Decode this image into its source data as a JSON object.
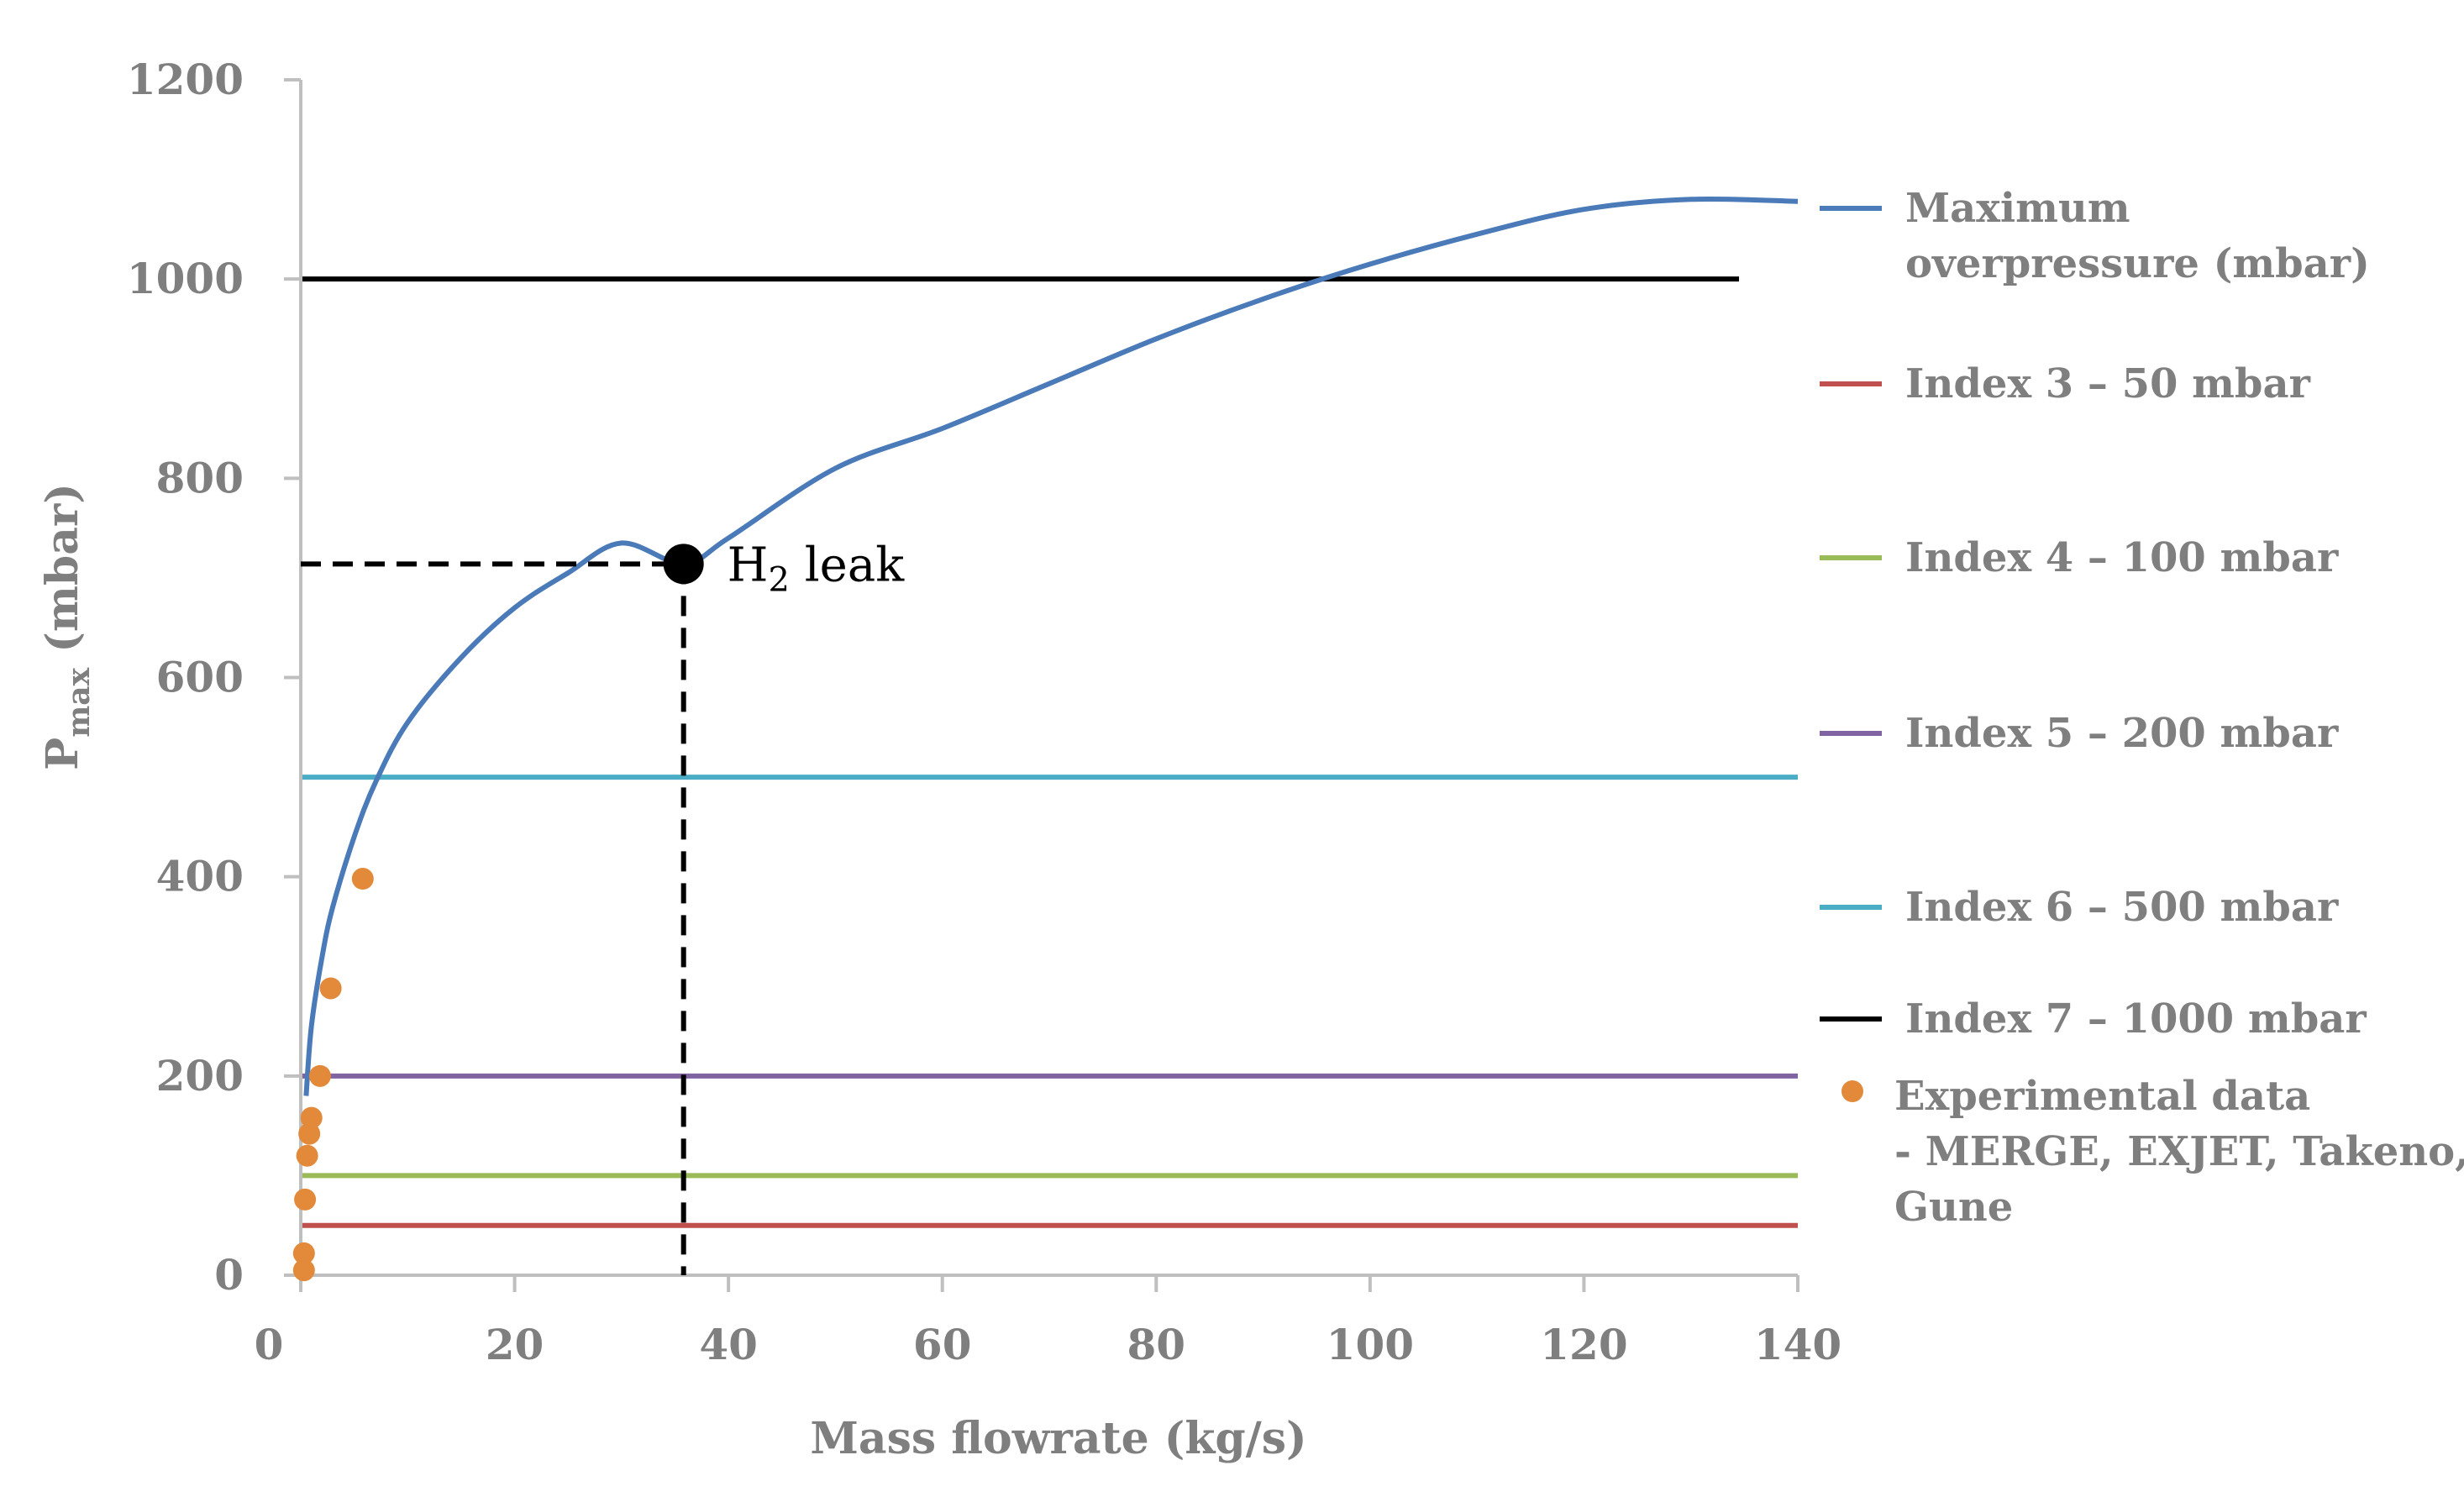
{
  "chart_data": {
    "type": "line",
    "title": "",
    "xlabel": "Mass flowrate (kg/s)",
    "ylabel": {
      "base": "P",
      "sub": "max",
      "unit": " (mbar)"
    },
    "xlim": [
      0,
      140
    ],
    "ylim": [
      0,
      1200
    ],
    "xticks": [
      0,
      20,
      40,
      60,
      80,
      100,
      120,
      140
    ],
    "yticks": [
      0,
      200,
      400,
      600,
      800,
      1000,
      1200
    ],
    "x_tick_labels": [
      "0",
      "20",
      "40",
      "60",
      "80",
      "100",
      "120",
      "140"
    ],
    "y_tick_labels": [
      "0",
      "200",
      "400",
      "600",
      "800",
      "1000",
      "1200"
    ],
    "grid": false,
    "legend_position": "right",
    "curve": {
      "name": "Maximum overpressure (mbar)",
      "color": "#4a7ab8",
      "x": [
        0.5,
        1,
        2,
        3,
        5,
        7,
        10,
        15,
        20,
        25,
        30,
        35.8,
        40,
        50,
        60,
        70,
        80,
        90,
        100,
        110,
        120,
        130,
        140
      ],
      "y": [
        180,
        250,
        320,
        370,
        440,
        495,
        555,
        620,
        670,
        705,
        735,
        714,
        740,
        810,
        850,
        895,
        940,
        980,
        1015,
        1045,
        1070,
        1080,
        1078
      ]
    },
    "thresholds": [
      {
        "name": "Index 3 – 50 mbar",
        "value": 50,
        "color": "#c0504d",
        "x_end": 140
      },
      {
        "name": "Index 4 – 100 mbar",
        "value": 100,
        "color": "#9bbb59",
        "x_end": 140
      },
      {
        "name": "Index 5 – 200 mbar",
        "value": 200,
        "color": "#8064a2",
        "x_end": 140
      },
      {
        "name": "Index 6 – 500 mbar",
        "value": 500,
        "color": "#4bacc6",
        "x_end": 140
      },
      {
        "name": "Index 7 – 1000 mbar",
        "value": 1000,
        "color": "#000000",
        "x_end": 134.5
      }
    ],
    "experimental": {
      "name": "Experimental data - MERGE, EXJET, Takeno, Gune",
      "color": "#e3893a",
      "points": [
        {
          "x": 0.3,
          "y": 5
        },
        {
          "x": 0.3,
          "y": 22
        },
        {
          "x": 0.4,
          "y": 76
        },
        {
          "x": 0.6,
          "y": 120
        },
        {
          "x": 0.8,
          "y": 142
        },
        {
          "x": 1.0,
          "y": 158
        },
        {
          "x": 1.8,
          "y": 200
        },
        {
          "x": 2.8,
          "y": 288
        },
        {
          "x": 5.8,
          "y": 398
        }
      ]
    },
    "annotation": {
      "label_main": "H",
      "label_sub": "2",
      "label_rest": " leak",
      "x": 35.8,
      "y": 714
    },
    "legend": [
      {
        "kind": "line",
        "color": "#4a7ab8",
        "lines": [
          "Maximum",
          "overpressure (mbar)"
        ]
      },
      {
        "kind": "line",
        "color": "#c0504d",
        "lines": [
          "Index 3 – 50 mbar"
        ]
      },
      {
        "kind": "line",
        "color": "#9bbb59",
        "lines": [
          "Index 4 – 100 mbar"
        ]
      },
      {
        "kind": "line",
        "color": "#8064a2",
        "lines": [
          "Index 5 – 200 mbar"
        ]
      },
      {
        "kind": "line",
        "color": "#4bacc6",
        "lines": [
          "Index 6 – 500 mbar"
        ]
      },
      {
        "kind": "line",
        "color": "#000000",
        "lines": [
          "Index 7 – 1000 mbar"
        ]
      },
      {
        "kind": "dot",
        "color": "#e3893a",
        "lines": [
          "Experimental data",
          "- MERGE, EXJET, Takeno,",
          "Gune"
        ]
      }
    ]
  }
}
